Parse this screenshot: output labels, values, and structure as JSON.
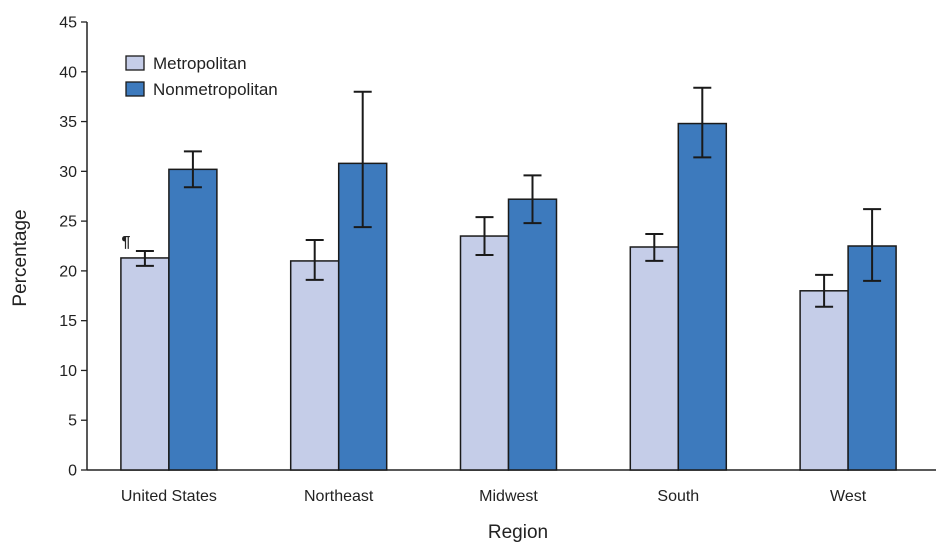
{
  "chart_data": {
    "type": "bar",
    "title": "",
    "xlabel": "Region",
    "ylabel": "Percentage",
    "ylim": [
      0,
      45
    ],
    "yticks": [
      0,
      5,
      10,
      15,
      20,
      25,
      30,
      35,
      40,
      45
    ],
    "grid": false,
    "legend_position": "top-left",
    "categories": [
      "United States",
      "Northeast",
      "Midwest",
      "South",
      "West"
    ],
    "series": [
      {
        "name": "Metropolitan",
        "color": "#c5cde8",
        "values": [
          21.3,
          21.0,
          23.5,
          22.4,
          18.0
        ],
        "error_low": [
          20.5,
          19.1,
          21.6,
          21.0,
          16.4
        ],
        "error_high": [
          22.0,
          23.1,
          25.4,
          23.7,
          19.6
        ]
      },
      {
        "name": "Nonmetropolitan",
        "color": "#3d7abd",
        "values": [
          30.2,
          30.8,
          27.2,
          34.8,
          22.5
        ],
        "error_low": [
          28.4,
          24.4,
          24.8,
          31.4,
          19.0
        ],
        "error_high": [
          32.0,
          38.0,
          29.6,
          38.4,
          26.2
        ]
      }
    ],
    "annotations": [
      {
        "text": "¶",
        "category": "United States",
        "series": "Metropolitan"
      }
    ]
  }
}
